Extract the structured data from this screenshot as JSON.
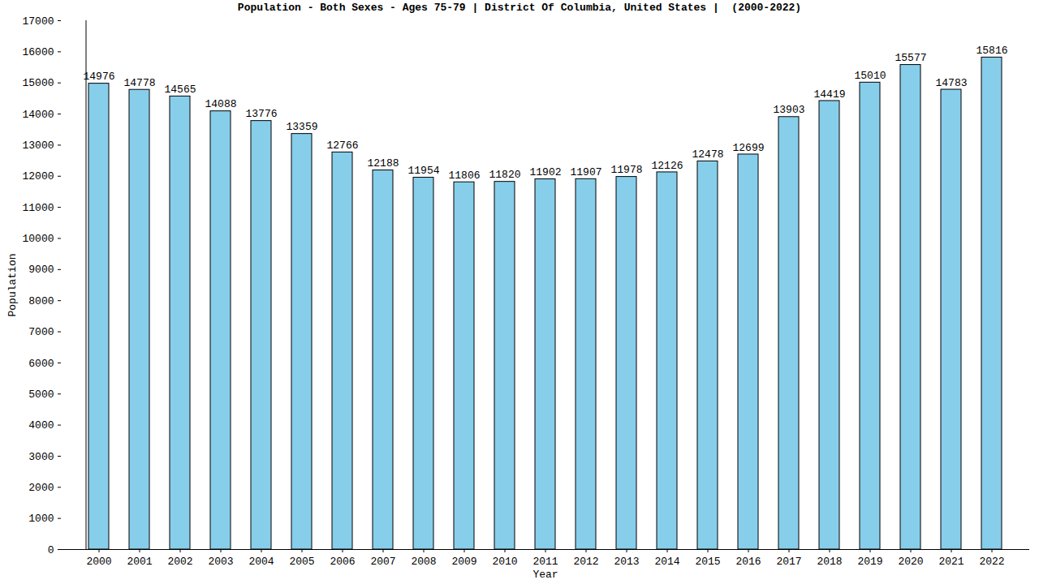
{
  "chart_data": {
    "type": "bar",
    "title": "Population - Both Sexes - Ages 75-79 | District Of Columbia, United States |  (2000-2022)",
    "x_label": "Year",
    "y_label": "Population",
    "categories": [
      "2000",
      "2001",
      "2002",
      "2003",
      "2004",
      "2005",
      "2006",
      "2007",
      "2008",
      "2009",
      "2010",
      "2011",
      "2012",
      "2013",
      "2014",
      "2015",
      "2016",
      "2017",
      "2018",
      "2019",
      "2020",
      "2021",
      "2022"
    ],
    "values": [
      14976,
      14778,
      14565,
      14088,
      13776,
      13359,
      12766,
      12188,
      11954,
      11806,
      11820,
      11902,
      11907,
      11978,
      12126,
      12478,
      12699,
      13903,
      14419,
      15010,
      15577,
      14783,
      15816
    ],
    "color": "#87ceeb",
    "ylim": [
      0,
      17000
    ],
    "yticks": [
      0,
      1000,
      2000,
      3000,
      4000,
      5000,
      6000,
      7000,
      8000,
      9000,
      10000,
      11000,
      12000,
      13000,
      14000,
      15000,
      16000,
      17000
    ],
    "grid": false,
    "data_labels": true
  }
}
